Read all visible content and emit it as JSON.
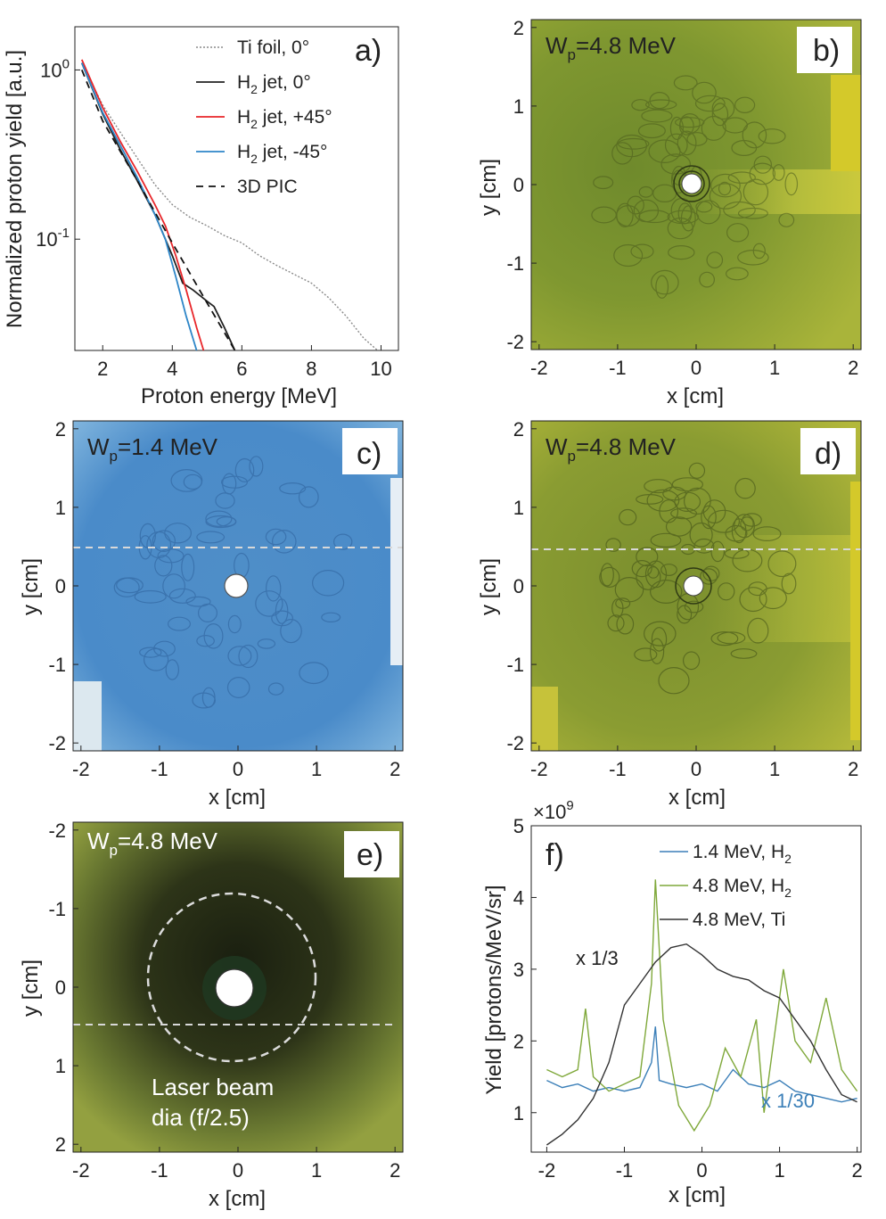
{
  "panels": {
    "a": {
      "label": "a)"
    },
    "b": {
      "label": "b)",
      "wp_main": "W",
      "wp_sub": "p",
      "wp_val": "=4.8 MeV"
    },
    "c": {
      "label": "c)",
      "wp_main": "W",
      "wp_sub": "p",
      "wp_val": "=1.4 MeV"
    },
    "d": {
      "label": "d)",
      "wp_main": "W",
      "wp_sub": "p",
      "wp_val": "=4.8 MeV"
    },
    "e": {
      "label": "e)",
      "wp_main": "W",
      "wp_sub": "p",
      "wp_val": "=4.8 MeV",
      "annot1": "Laser beam",
      "annot2": "dia (f/2.5)"
    },
    "f": {
      "label": "f)"
    }
  },
  "colors": {
    "ti": "#8a8a8a",
    "h2_0": "#222222",
    "h2_p45": "#e8262a",
    "h2_m45": "#2e86c8",
    "pic": "#111111",
    "f_blue": "#3b7fb8",
    "f_green": "#7fa83a",
    "f_black": "#333333",
    "film_green": "#8fa23a",
    "film_blue": "#5b9bd0",
    "film_dark": "#3a4520"
  },
  "chart_data": [
    {
      "id": "a",
      "type": "line",
      "xlabel": "Proton energy [MeV]",
      "ylabel": "Normalized proton yield [a.u.]",
      "xlim": [
        1.2,
        10.5
      ],
      "ylim_log": [
        0.022,
        1.8
      ],
      "log_y": true,
      "xticks": [
        2,
        4,
        6,
        8,
        10
      ],
      "yticks": [
        {
          "v": 1,
          "base": "10",
          "exp": "0"
        },
        {
          "v": 0.1,
          "base": "10",
          "exp": "-1"
        }
      ],
      "series": [
        {
          "name_main": "Ti foil, 0°",
          "name_sub": "",
          "name_rest": "",
          "color": "#8a8a8a",
          "dash": "2,2",
          "x": [
            1.4,
            2,
            2.5,
            3,
            3.5,
            4,
            4.5,
            5,
            5.5,
            6,
            6.5,
            7,
            7.5,
            8,
            8.5,
            9,
            9.5,
            9.9
          ],
          "y": [
            1.1,
            0.62,
            0.43,
            0.3,
            0.21,
            0.16,
            0.135,
            0.12,
            0.105,
            0.095,
            0.08,
            0.07,
            0.062,
            0.055,
            0.045,
            0.035,
            0.026,
            0.022
          ]
        },
        {
          "name_main": "H",
          "name_sub": "2",
          "name_rest": " jet, 0°",
          "color": "#222222",
          "dash": "",
          "x": [
            1.4,
            2,
            2.5,
            3,
            3.5,
            3.8,
            4,
            4.3,
            4.6,
            5,
            5.2,
            5.5,
            5.8
          ],
          "y": [
            1.1,
            0.55,
            0.34,
            0.22,
            0.14,
            0.1,
            0.08,
            0.055,
            0.05,
            0.043,
            0.04,
            0.03,
            0.022
          ]
        },
        {
          "name_main": "H",
          "name_sub": "2",
          "name_rest": " jet, +45°",
          "color": "#e8262a",
          "dash": "",
          "x": [
            1.4,
            2,
            2.5,
            3,
            3.5,
            3.8,
            4.1,
            4.4,
            4.7,
            4.9
          ],
          "y": [
            1.15,
            0.6,
            0.38,
            0.25,
            0.16,
            0.12,
            0.08,
            0.05,
            0.03,
            0.022
          ]
        },
        {
          "name_main": "H",
          "name_sub": "2",
          "name_rest": " jet, -45°",
          "color": "#2e86c8",
          "dash": "",
          "x": [
            1.4,
            2,
            2.5,
            3,
            3.5,
            3.8,
            4.1,
            4.4,
            4.7
          ],
          "y": [
            1.1,
            0.56,
            0.36,
            0.23,
            0.14,
            0.1,
            0.06,
            0.035,
            0.022
          ]
        },
        {
          "name_main": "3D PIC",
          "name_sub": "",
          "name_rest": "",
          "color": "#111111",
          "dash": "8,6",
          "x": [
            1.4,
            2,
            3,
            4,
            5,
            5.8
          ],
          "y": [
            1.0,
            0.5,
            0.22,
            0.095,
            0.042,
            0.022
          ]
        }
      ]
    },
    {
      "id": "b",
      "type": "heatmap",
      "xlabel": "x [cm]",
      "ylabel": "y [cm]",
      "xlim": [
        -2.1,
        2.1
      ],
      "ylim": [
        -2.1,
        2.1
      ],
      "xticks": [
        -2,
        -1,
        0,
        1,
        2
      ],
      "yticks": [
        2,
        1,
        0,
        -1,
        -2
      ]
    },
    {
      "id": "c",
      "type": "heatmap",
      "xlabel": "x [cm]",
      "ylabel": "y [cm]",
      "xlim": [
        -2.1,
        2.1
      ],
      "ylim": [
        -2.1,
        2.1
      ],
      "xticks": [
        -2,
        -1,
        0,
        1,
        2
      ],
      "yticks": [
        2,
        1,
        0,
        -1,
        -2
      ]
    },
    {
      "id": "d",
      "type": "heatmap",
      "xlabel": "x [cm]",
      "ylabel": "y [cm]",
      "xlim": [
        -2.1,
        2.1
      ],
      "ylim": [
        -2.1,
        2.1
      ],
      "xticks": [
        -2,
        -1,
        0,
        1,
        2
      ],
      "yticks": [
        2,
        1,
        0,
        -1,
        -2
      ]
    },
    {
      "id": "e",
      "type": "heatmap",
      "xlabel": "x [cm]",
      "ylabel": "y [cm]",
      "xlim": [
        -2.1,
        2.1
      ],
      "ylim": [
        -2.1,
        2.1
      ],
      "xticks": [
        -2,
        -1,
        0,
        1,
        2
      ],
      "yticks": [
        -2,
        -1,
        0,
        1,
        2
      ]
    },
    {
      "id": "f",
      "type": "line",
      "xlabel": "x [cm]",
      "ylabel": "Yield [protons/MeV/sr]",
      "xlim": [
        -2.2,
        2.05
      ],
      "ylim": [
        0.45,
        5
      ],
      "xticks": [
        -2,
        -1,
        0,
        1,
        2
      ],
      "yticks": [
        1,
        2,
        3,
        4,
        5
      ],
      "multiplier_main": "×10",
      "multiplier_exp": "9",
      "note_ti": "x 1/3",
      "note_h2": "x 1/30",
      "series": [
        {
          "name_main": "1.4 MeV, H",
          "name_sub": "2",
          "color": "#3b7fb8",
          "x": [
            -2.0,
            -1.8,
            -1.6,
            -1.4,
            -1.2,
            -1.0,
            -0.8,
            -0.65,
            -0.6,
            -0.55,
            -0.4,
            -0.2,
            0.0,
            0.2,
            0.4,
            0.6,
            0.8,
            1.0,
            1.2,
            1.4,
            1.6,
            1.8,
            2.0
          ],
          "y": [
            1.45,
            1.35,
            1.4,
            1.3,
            1.35,
            1.3,
            1.35,
            1.7,
            2.2,
            1.45,
            1.4,
            1.35,
            1.4,
            1.3,
            1.6,
            1.4,
            1.35,
            1.45,
            1.3,
            1.25,
            1.2,
            1.15,
            1.2
          ]
        },
        {
          "name_main": "4.8 MeV, H",
          "name_sub": "2",
          "color": "#7fa83a",
          "x": [
            -2.0,
            -1.8,
            -1.6,
            -1.5,
            -1.4,
            -1.2,
            -1.0,
            -0.8,
            -0.65,
            -0.6,
            -0.5,
            -0.3,
            -0.1,
            0.1,
            0.3,
            0.5,
            0.7,
            0.8,
            0.9,
            1.05,
            1.2,
            1.4,
            1.6,
            1.8,
            2.0
          ],
          "y": [
            1.6,
            1.5,
            1.6,
            2.45,
            1.5,
            1.3,
            1.4,
            1.5,
            2.8,
            4.25,
            2.3,
            1.1,
            0.75,
            1.1,
            1.9,
            1.5,
            2.3,
            1.0,
            1.8,
            3.0,
            2.0,
            1.7,
            2.6,
            1.6,
            1.3
          ]
        },
        {
          "name_main": "4.8 MeV, Ti",
          "name_sub": "",
          "color": "#333333",
          "x": [
            -2.0,
            -1.8,
            -1.6,
            -1.4,
            -1.2,
            -1.0,
            -0.8,
            -0.6,
            -0.4,
            -0.2,
            0.0,
            0.2,
            0.4,
            0.6,
            0.8,
            1.0,
            1.2,
            1.4,
            1.6,
            1.8,
            2.0
          ],
          "y": [
            0.55,
            0.7,
            0.9,
            1.2,
            1.7,
            2.5,
            2.8,
            3.1,
            3.3,
            3.35,
            3.2,
            3.0,
            2.9,
            2.85,
            2.7,
            2.6,
            2.3,
            2.0,
            1.6,
            1.25,
            1.15
          ]
        }
      ]
    }
  ]
}
